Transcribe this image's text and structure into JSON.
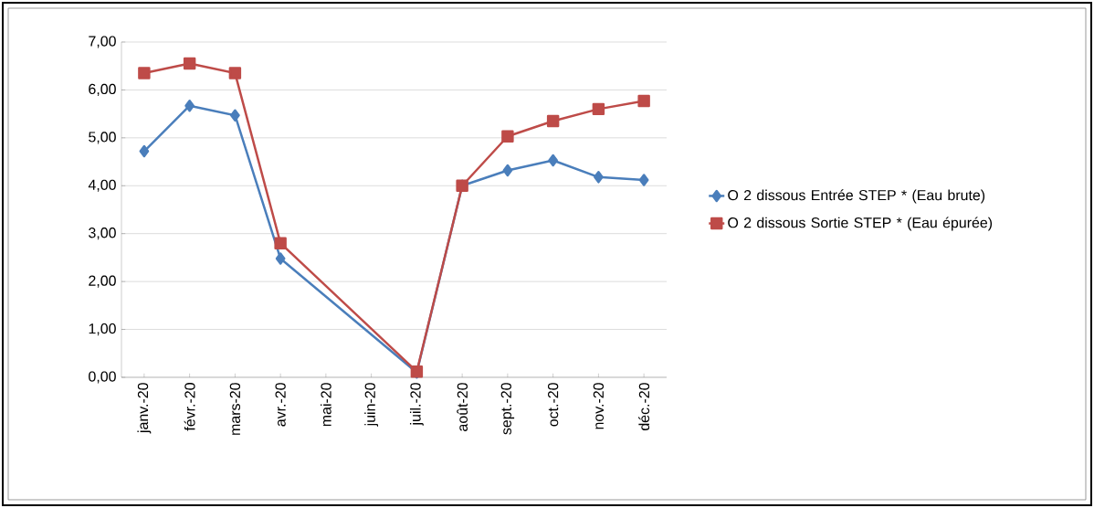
{
  "chart_data": {
    "type": "line",
    "categories": [
      "janv.-20",
      "févr.-20",
      "mars-20",
      "avr.-20",
      "mai-20",
      "juin-20",
      "juil.-20",
      "août-20",
      "sept.-20",
      "oct.-20",
      "nov.-20",
      "déc.-20"
    ],
    "series": [
      {
        "name": "O 2 dissous Entrée STEP * (Eau brute)",
        "color": "#4a7ebb",
        "marker": "diamond",
        "values": [
          4.72,
          5.67,
          5.47,
          2.48,
          null,
          null,
          0.1,
          4.0,
          4.32,
          4.53,
          4.18,
          4.12
        ]
      },
      {
        "name": "O 2 dissous Sortie STEP * (Eau épurée)",
        "color": "#be4b48",
        "marker": "square",
        "values": [
          6.35,
          6.55,
          6.35,
          2.8,
          null,
          null,
          0.12,
          4.0,
          5.03,
          5.35,
          5.6,
          5.77
        ]
      }
    ],
    "ylim": [
      0,
      7
    ],
    "yticks": [
      {
        "value": 0,
        "label": "0,00"
      },
      {
        "value": 1,
        "label": "1,00"
      },
      {
        "value": 2,
        "label": "2,00"
      },
      {
        "value": 3,
        "label": "3,00"
      },
      {
        "value": 4,
        "label": "4,00"
      },
      {
        "value": 5,
        "label": "5,00"
      },
      {
        "value": 6,
        "label": "6,00"
      },
      {
        "value": 7,
        "label": "7,00"
      }
    ],
    "grid": "y",
    "legend": "right",
    "line_style": "solid"
  }
}
